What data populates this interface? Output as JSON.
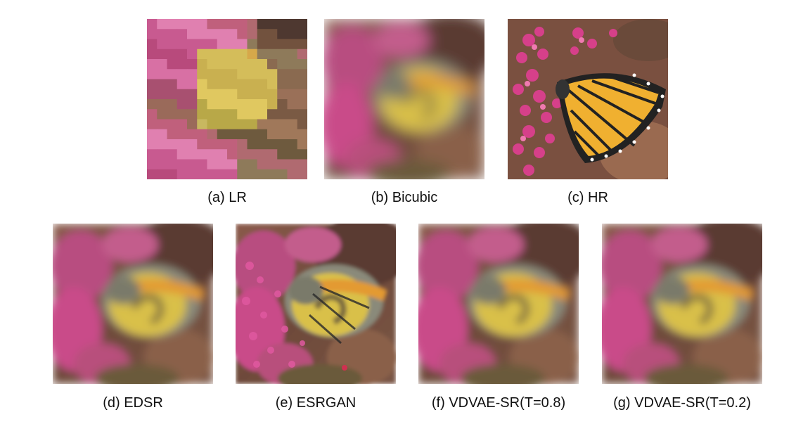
{
  "figure": {
    "panels": [
      {
        "id": "a",
        "caption": "(a) LR"
      },
      {
        "id": "b",
        "caption": "(b) Bicubic"
      },
      {
        "id": "c",
        "caption": "(c) HR"
      },
      {
        "id": "d",
        "caption": "(d) EDSR"
      },
      {
        "id": "e",
        "caption": "(e) ESRGAN"
      },
      {
        "id": "f",
        "caption": "(f) VDVAE-SR(T=0.8)"
      },
      {
        "id": "g",
        "caption": "(g) VDVAE-SR(T=0.2)"
      }
    ]
  }
}
